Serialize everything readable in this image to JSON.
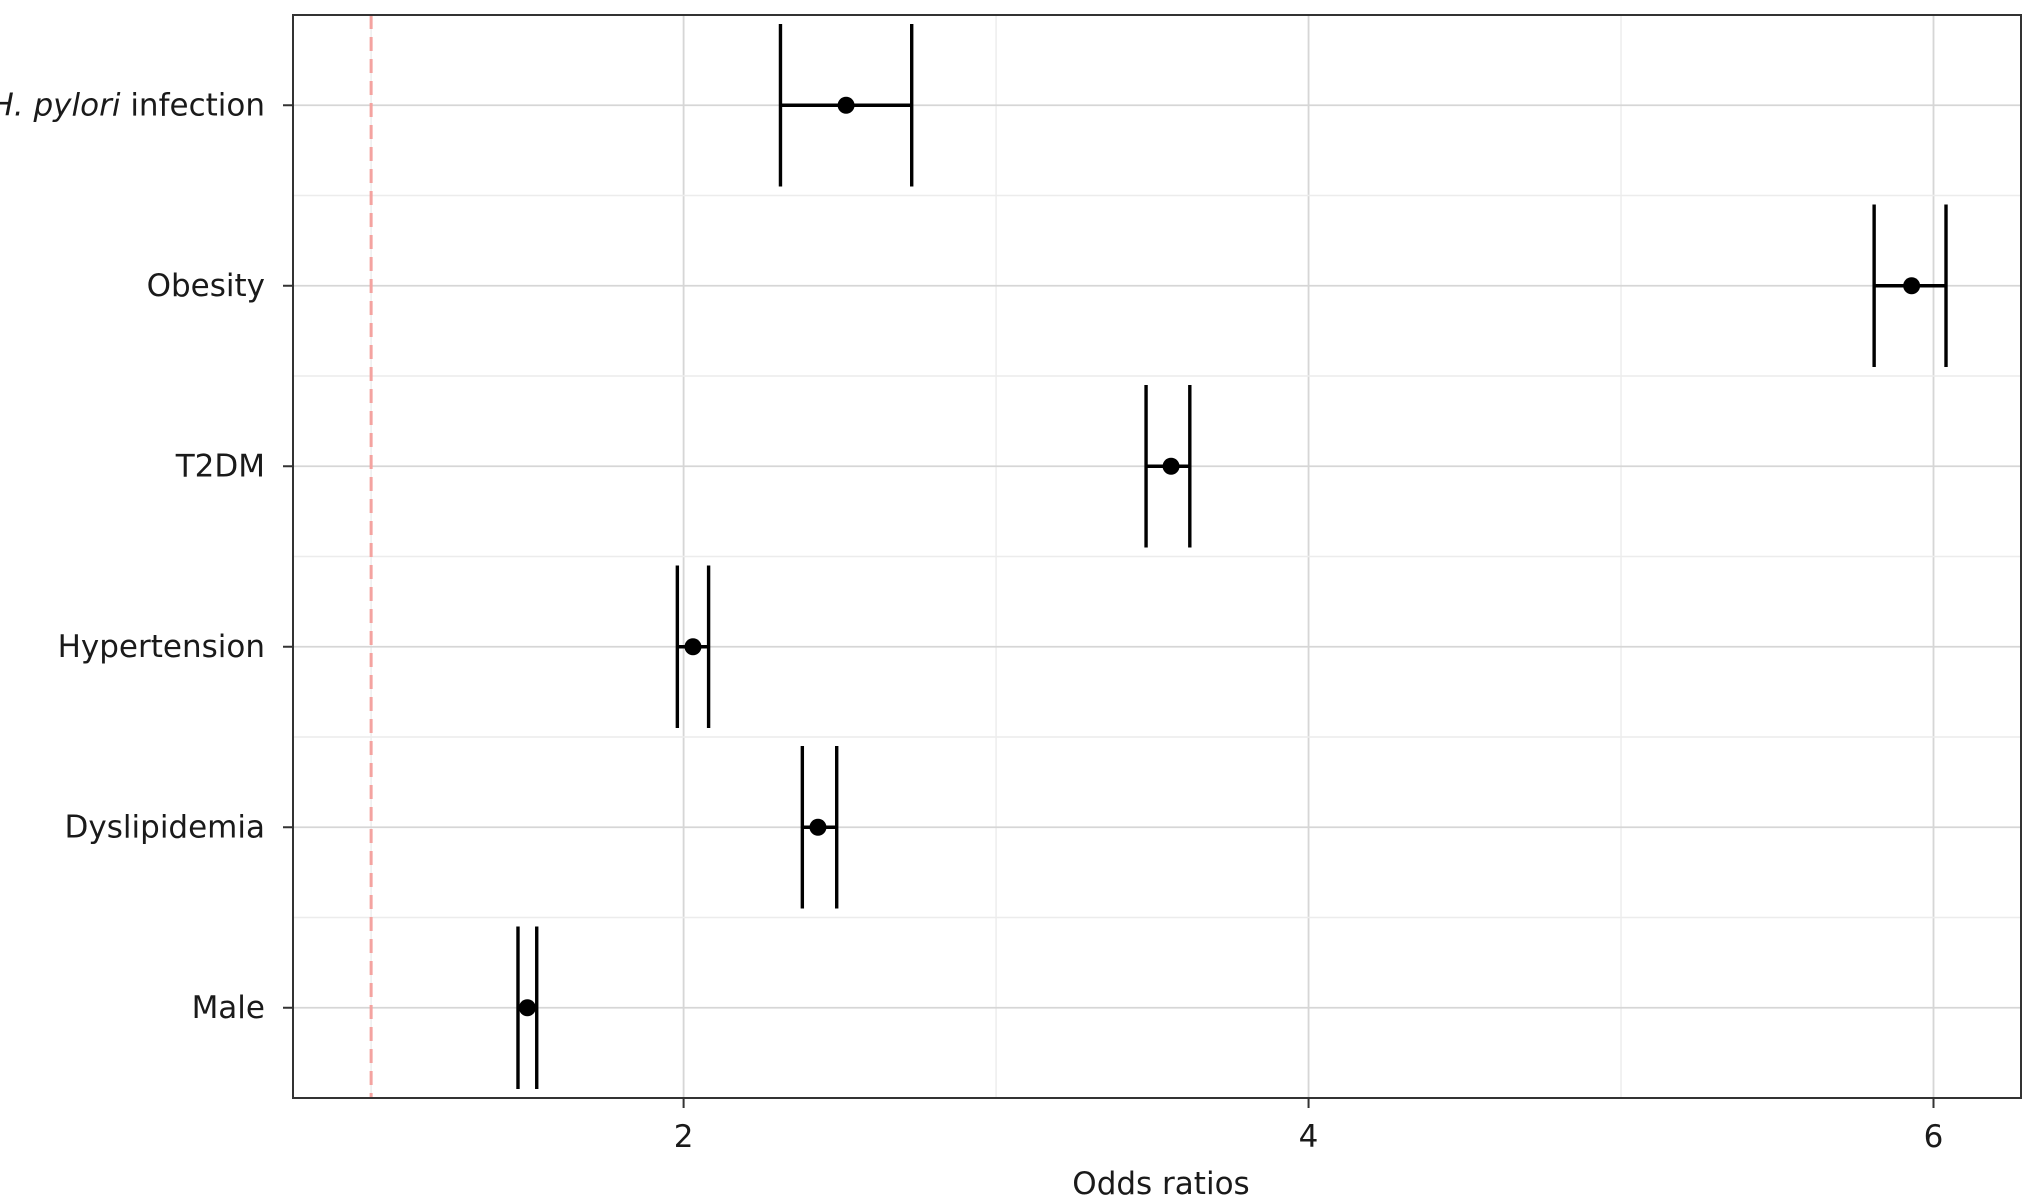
{
  "chart_data": {
    "type": "forest",
    "title": "",
    "xlabel": "Odds ratios",
    "ylabel": "",
    "xlim": [
      0.75,
      6.28
    ],
    "xticks": [
      2,
      4,
      6
    ],
    "xtick_labels": [
      "2",
      "4",
      "6"
    ],
    "reference_line": {
      "x": 1,
      "style": "dashed",
      "color": "#f4a3a0"
    },
    "grid": true,
    "legend": "none",
    "rows": [
      {
        "label": "H. pylori infection",
        "label_italic_part": "H. pylori",
        "label_rest": " infection",
        "or": 2.52,
        "ci_low": 2.31,
        "ci_high": 2.73
      },
      {
        "label": "Obesity",
        "or": 5.93,
        "ci_low": 5.81,
        "ci_high": 6.04
      },
      {
        "label": "T2DM",
        "or": 3.56,
        "ci_low": 3.48,
        "ci_high": 3.62
      },
      {
        "label": "Hypertension",
        "or": 2.03,
        "ci_low": 1.98,
        "ci_high": 2.08
      },
      {
        "label": "Dyslipidemia",
        "or": 2.43,
        "ci_low": 2.38,
        "ci_high": 2.49
      },
      {
        "label": "Male",
        "or": 1.5,
        "ci_low": 1.47,
        "ci_high": 1.53
      }
    ]
  }
}
